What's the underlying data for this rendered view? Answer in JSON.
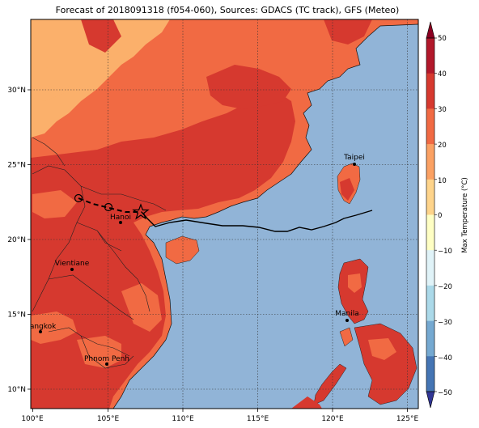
{
  "title": "Forecast of 2018091318 (f054-060), Sources: GDACS (TC track), GFS (Meteo)",
  "colorbar": {
    "label": "Max Temperature (°C)",
    "ticks": [
      "50",
      "40",
      "30",
      "20",
      "10",
      "0",
      "−10",
      "−20",
      "−30",
      "−40",
      "−50"
    ],
    "colors": [
      "#8b0021",
      "#b2182b",
      "#d6392f",
      "#f16a43",
      "#fba163",
      "#fed48b",
      "#ffffc4",
      "#e0f3f8",
      "#abd9e9",
      "#75a9d1",
      "#4575b4",
      "#313695"
    ]
  },
  "axes": {
    "lon_ticks": [
      "100°E",
      "105°E",
      "110°E",
      "115°E",
      "120°E",
      "125°E"
    ],
    "lat_ticks": [
      "30°N",
      "25°N",
      "20°N",
      "15°N",
      "10°N"
    ]
  },
  "cities": [
    {
      "name": "Taipei"
    },
    {
      "name": "Hanoi"
    },
    {
      "name": "Vientiane"
    },
    {
      "name": "Manila"
    },
    {
      "name": "Bangkok"
    },
    {
      "name": "Phnom Penh"
    }
  ],
  "colors": {
    "ocean": "#91b4d7",
    "land_30_40": "#d6392f",
    "land_20_30": "#f16a43",
    "land_10_20": "#fbb06b",
    "track": "#000000"
  }
}
